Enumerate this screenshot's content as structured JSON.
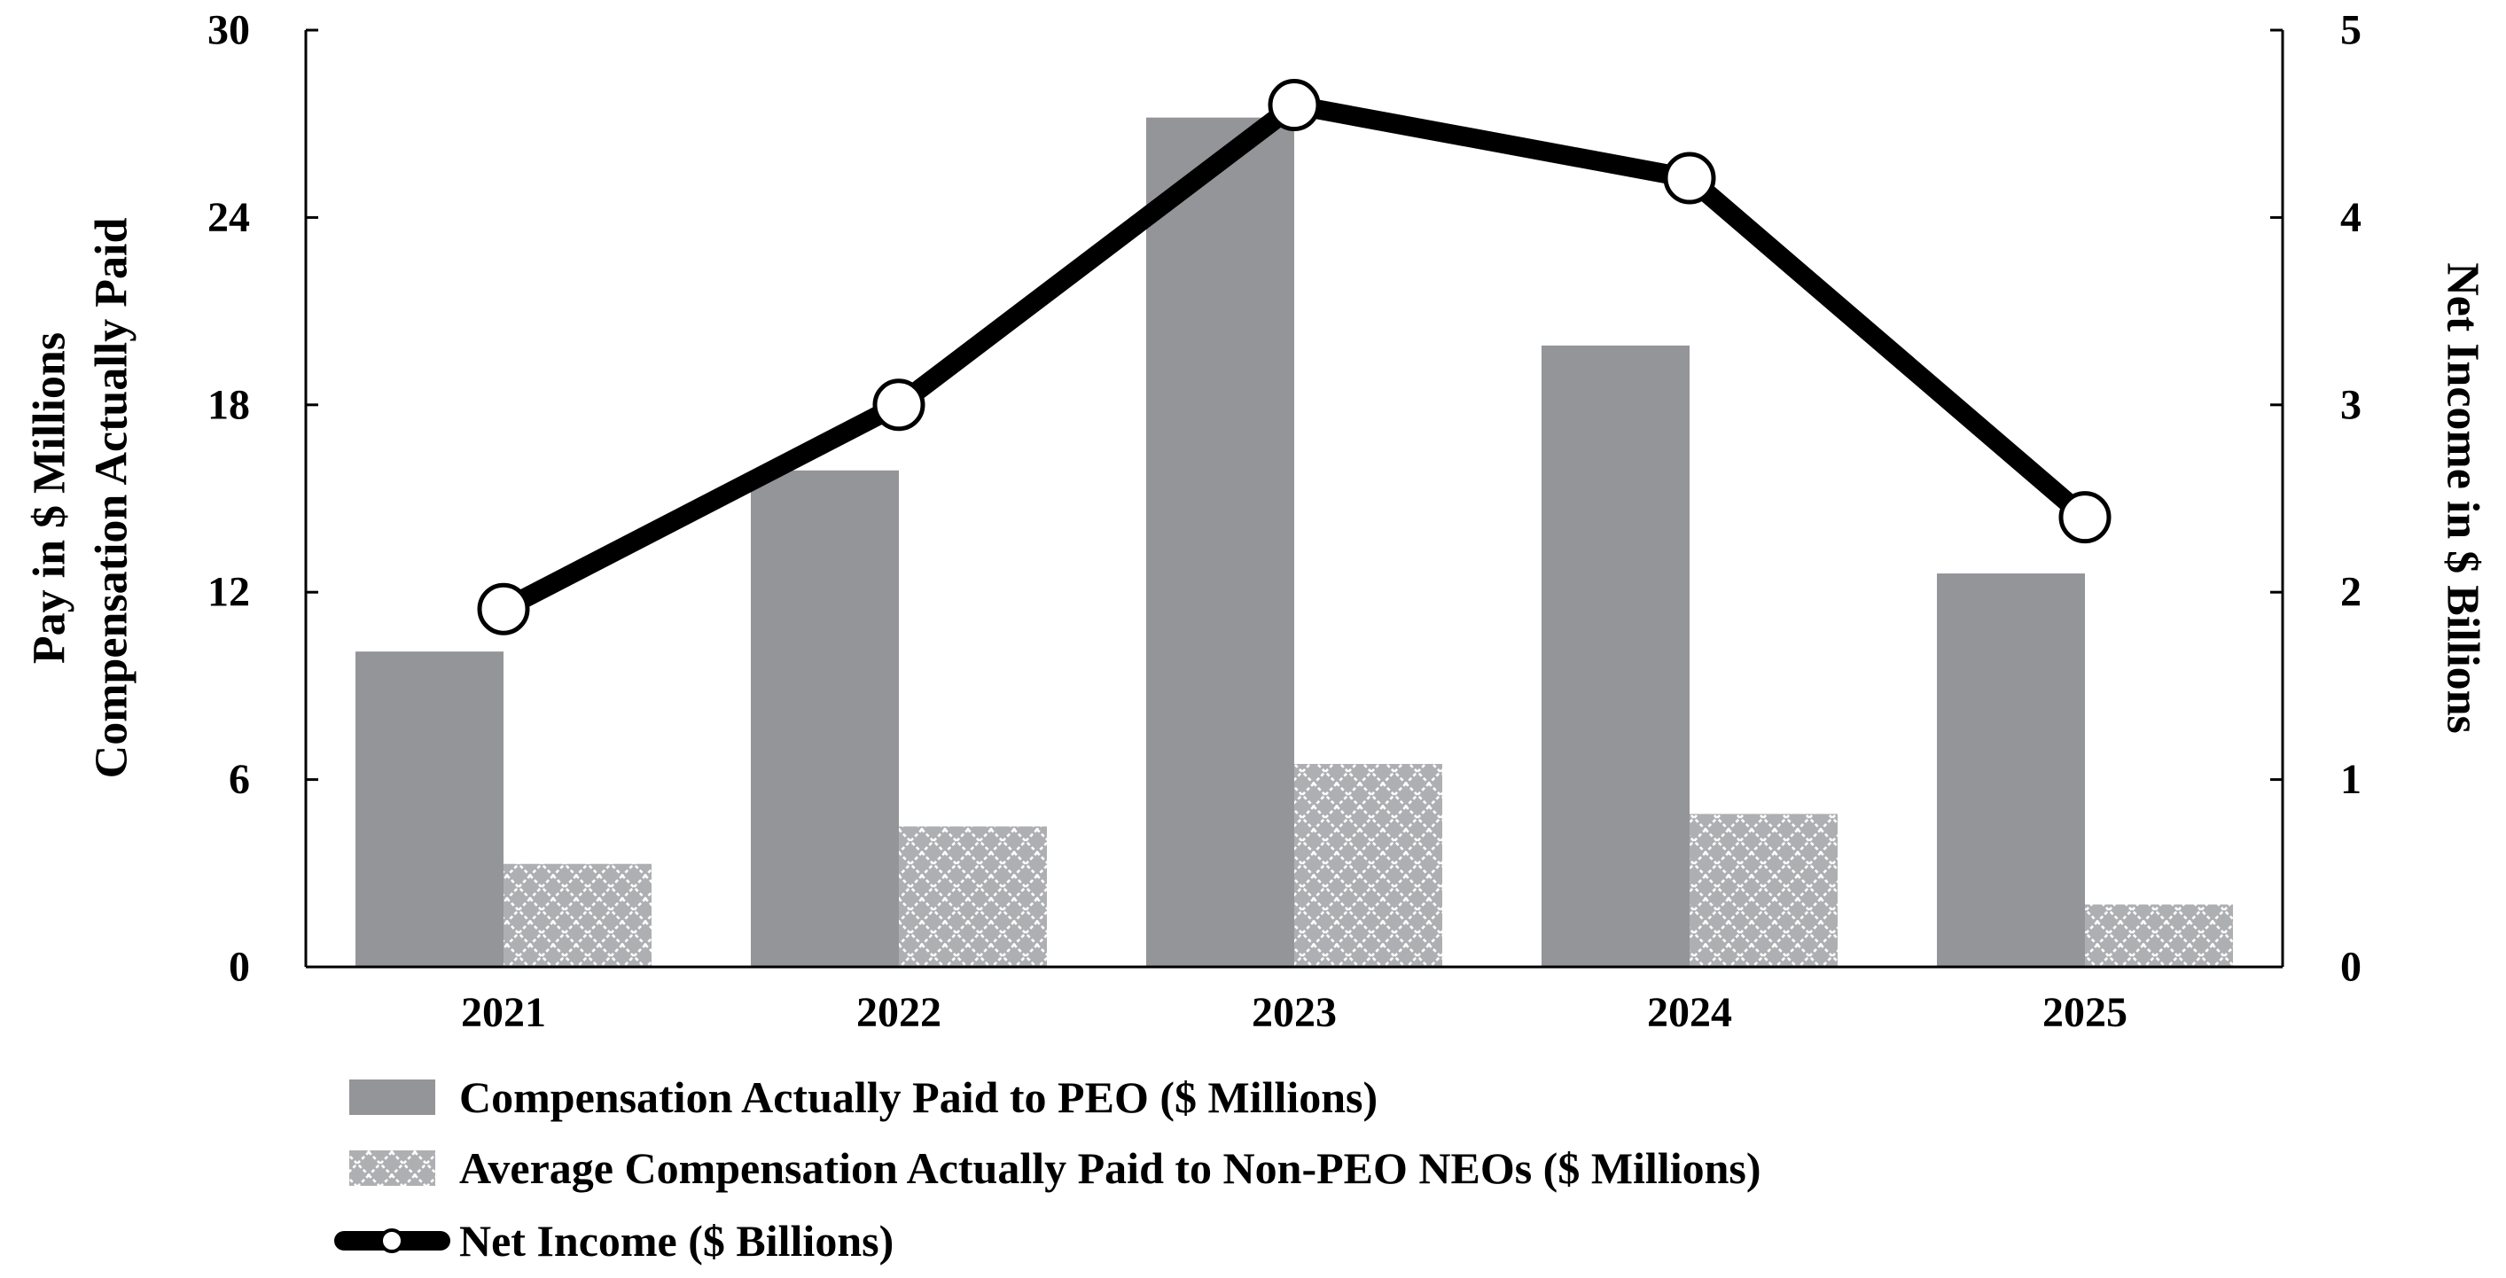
{
  "colors": {
    "peo_bar": "#939598",
    "neo_pattern_bg": "#aeafb2",
    "neo_pattern_line": "#ffffff",
    "line": "#000000",
    "marker_fill": "#ffffff"
  },
  "chart_data": {
    "type": "bar",
    "categories": [
      "2021",
      "2022",
      "2023",
      "2024",
      "2025"
    ],
    "series": [
      {
        "name": "Compensation Actually Paid to PEO ($ Millions)",
        "type": "bar",
        "axis": "left",
        "values": [
          10.1,
          15.9,
          27.2,
          19.9,
          12.6
        ]
      },
      {
        "name": "Average Compensation Actually Paid to Non-PEO NEOs ($ Millions)",
        "type": "bar",
        "axis": "left",
        "values": [
          3.3,
          4.5,
          6.5,
          4.9,
          2.0
        ]
      },
      {
        "name": "Net Income ($ Billions)",
        "type": "line",
        "axis": "right",
        "values": [
          1.91,
          3.0,
          4.6,
          4.21,
          2.4
        ]
      }
    ],
    "ylabel_left_lines": [
      "Compensation Actually Paid",
      "Pay in $ Millions"
    ],
    "ylabel_right": "Net Income in $ Billions",
    "ylim_left": [
      0,
      30
    ],
    "ylim_right": [
      0,
      5
    ],
    "yticks_left": [
      "0",
      "6",
      "12",
      "18",
      "24",
      "30"
    ],
    "yticks_right": [
      "0",
      "1",
      "2",
      "3",
      "4",
      "5"
    ],
    "legend": [
      "Compensation Actually Paid to PEO ($ Millions)",
      "Average Compensation Actually Paid to Non-PEO NEOs ($ Millions)",
      "Net Income ($ Billions)"
    ],
    "legend_position": "bottom-left",
    "grid": false
  }
}
